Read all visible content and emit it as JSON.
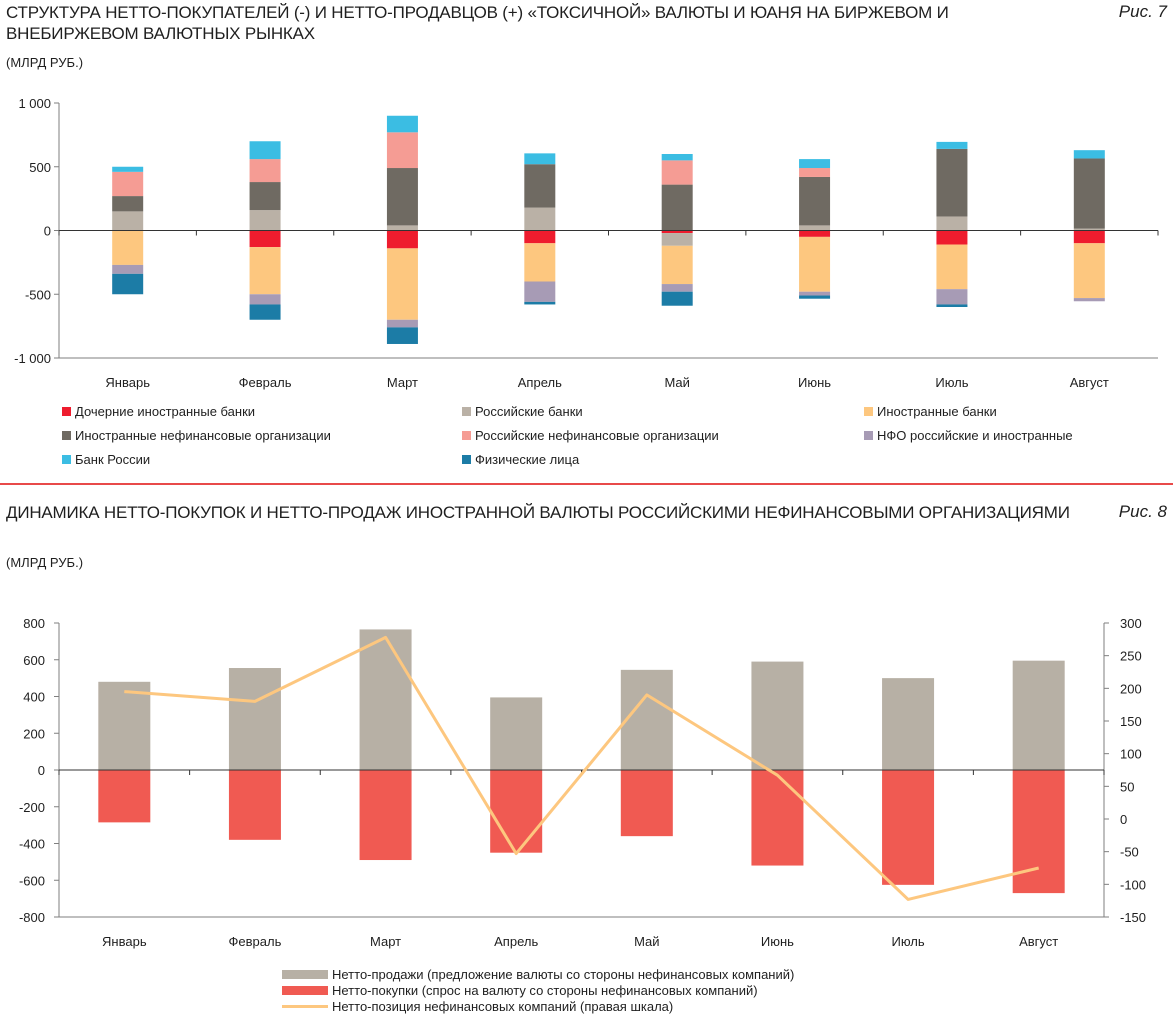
{
  "fig7": {
    "title": "СТРУКТУРА НЕТТО-ПОКУПАТЕЛЕЙ (-) И НЕТТО-ПРОДАВЦОВ (+) «ТОКСИЧНОЙ» ВАЛЮТЫ И ЮАНЯ НА БИРЖЕВОМ И ВНЕБИРЖЕВОМ ВАЛЮТНЫХ РЫНКАХ",
    "label": "Рис. 7",
    "unit": "(МЛРД РУБ.)"
  },
  "fig8": {
    "title": "ДИНАМИКА НЕТТО-ПОКУПОК И НЕТТО-ПРОДАЖ ИНОСТРАННОЙ ВАЛЮТЫ РОССИЙСКИМИ НЕФИНАНСОВЫМИ ОРГАНИЗАЦИЯМИ",
    "label": "Рис. 8",
    "unit": "(МЛРД РУБ.)"
  },
  "chart_data": [
    {
      "type": "bar",
      "stacked": true,
      "categories": [
        "Январь",
        "Февраль",
        "Март",
        "Апрель",
        "Май",
        "Июнь",
        "Июль",
        "Август"
      ],
      "ylim": [
        -1000,
        1000
      ],
      "yticks": [
        1000,
        500,
        0,
        -500,
        -1000
      ],
      "ytick_labels": [
        "1 000",
        "500",
        "0",
        "-500",
        "-1 000"
      ],
      "legend_position": "bottom",
      "series": [
        {
          "name": "Дочерние иностранные банки",
          "color": "#ee1c2e",
          "values": [
            0,
            -130,
            -140,
            -100,
            -20,
            -50,
            -110,
            -100
          ]
        },
        {
          "name": "Российские банки",
          "color": "#bab1a6",
          "values": [
            150,
            160,
            40,
            180,
            -100,
            40,
            110,
            15
          ]
        },
        {
          "name": "Иностранные банки",
          "color": "#fdc77f",
          "values": [
            -270,
            -370,
            -560,
            -300,
            -300,
            -430,
            -350,
            -430
          ]
        },
        {
          "name": "Иностранные нефинансовые организации",
          "color": "#6f6a62",
          "values": [
            120,
            220,
            450,
            340,
            360,
            380,
            530,
            550
          ]
        },
        {
          "name": "Российские нефинансовые организации",
          "color": "#f59c94",
          "values": [
            190,
            180,
            280,
            0,
            190,
            70,
            0,
            0
          ]
        },
        {
          "name": "НФО российские и иностранные",
          "color": "#a79bb5",
          "values": [
            -70,
            -80,
            -60,
            -160,
            -60,
            -30,
            -120,
            -25
          ]
        },
        {
          "name": "Банк России",
          "color": "#3bbde3",
          "values": [
            40,
            140,
            130,
            85,
            50,
            70,
            55,
            65
          ]
        },
        {
          "name": "Физические лица",
          "color": "#1c7ca6",
          "values": [
            -160,
            -120,
            -130,
            -20,
            -110,
            -25,
            -20,
            0
          ]
        }
      ]
    },
    {
      "type": "bar",
      "categories": [
        "Январь",
        "Февраль",
        "Март",
        "Апрель",
        "Май",
        "Июнь",
        "Июль",
        "Август"
      ],
      "ylim": [
        -800,
        800
      ],
      "yticks": [
        800,
        600,
        400,
        200,
        0,
        -200,
        -400,
        -600,
        -800
      ],
      "y2lim": [
        -150,
        300
      ],
      "y2ticks": [
        300,
        250,
        200,
        150,
        100,
        50,
        0,
        -50,
        -100,
        -150
      ],
      "legend_position": "bottom",
      "series": [
        {
          "name": "Нетто-продажи  (предложение валюты со стороны нефинансовых компаний)",
          "color": "#b7b0a5",
          "type": "bar",
          "values": [
            480,
            555,
            765,
            395,
            545,
            590,
            500,
            595
          ]
        },
        {
          "name": "Нетто-покупки (спрос на валюту со стороны нефинансовых компаний)",
          "color": "#f05a52",
          "type": "bar",
          "values": [
            -285,
            -380,
            -490,
            -450,
            -360,
            -520,
            -625,
            -670
          ]
        },
        {
          "name": "Нетто-позиция нефинансовых компаний (правая шкала)",
          "color": "#fdc77f",
          "type": "line",
          "axis": "right",
          "values": [
            195,
            180,
            278,
            -53,
            190,
            67,
            -123,
            -75
          ]
        }
      ]
    }
  ]
}
